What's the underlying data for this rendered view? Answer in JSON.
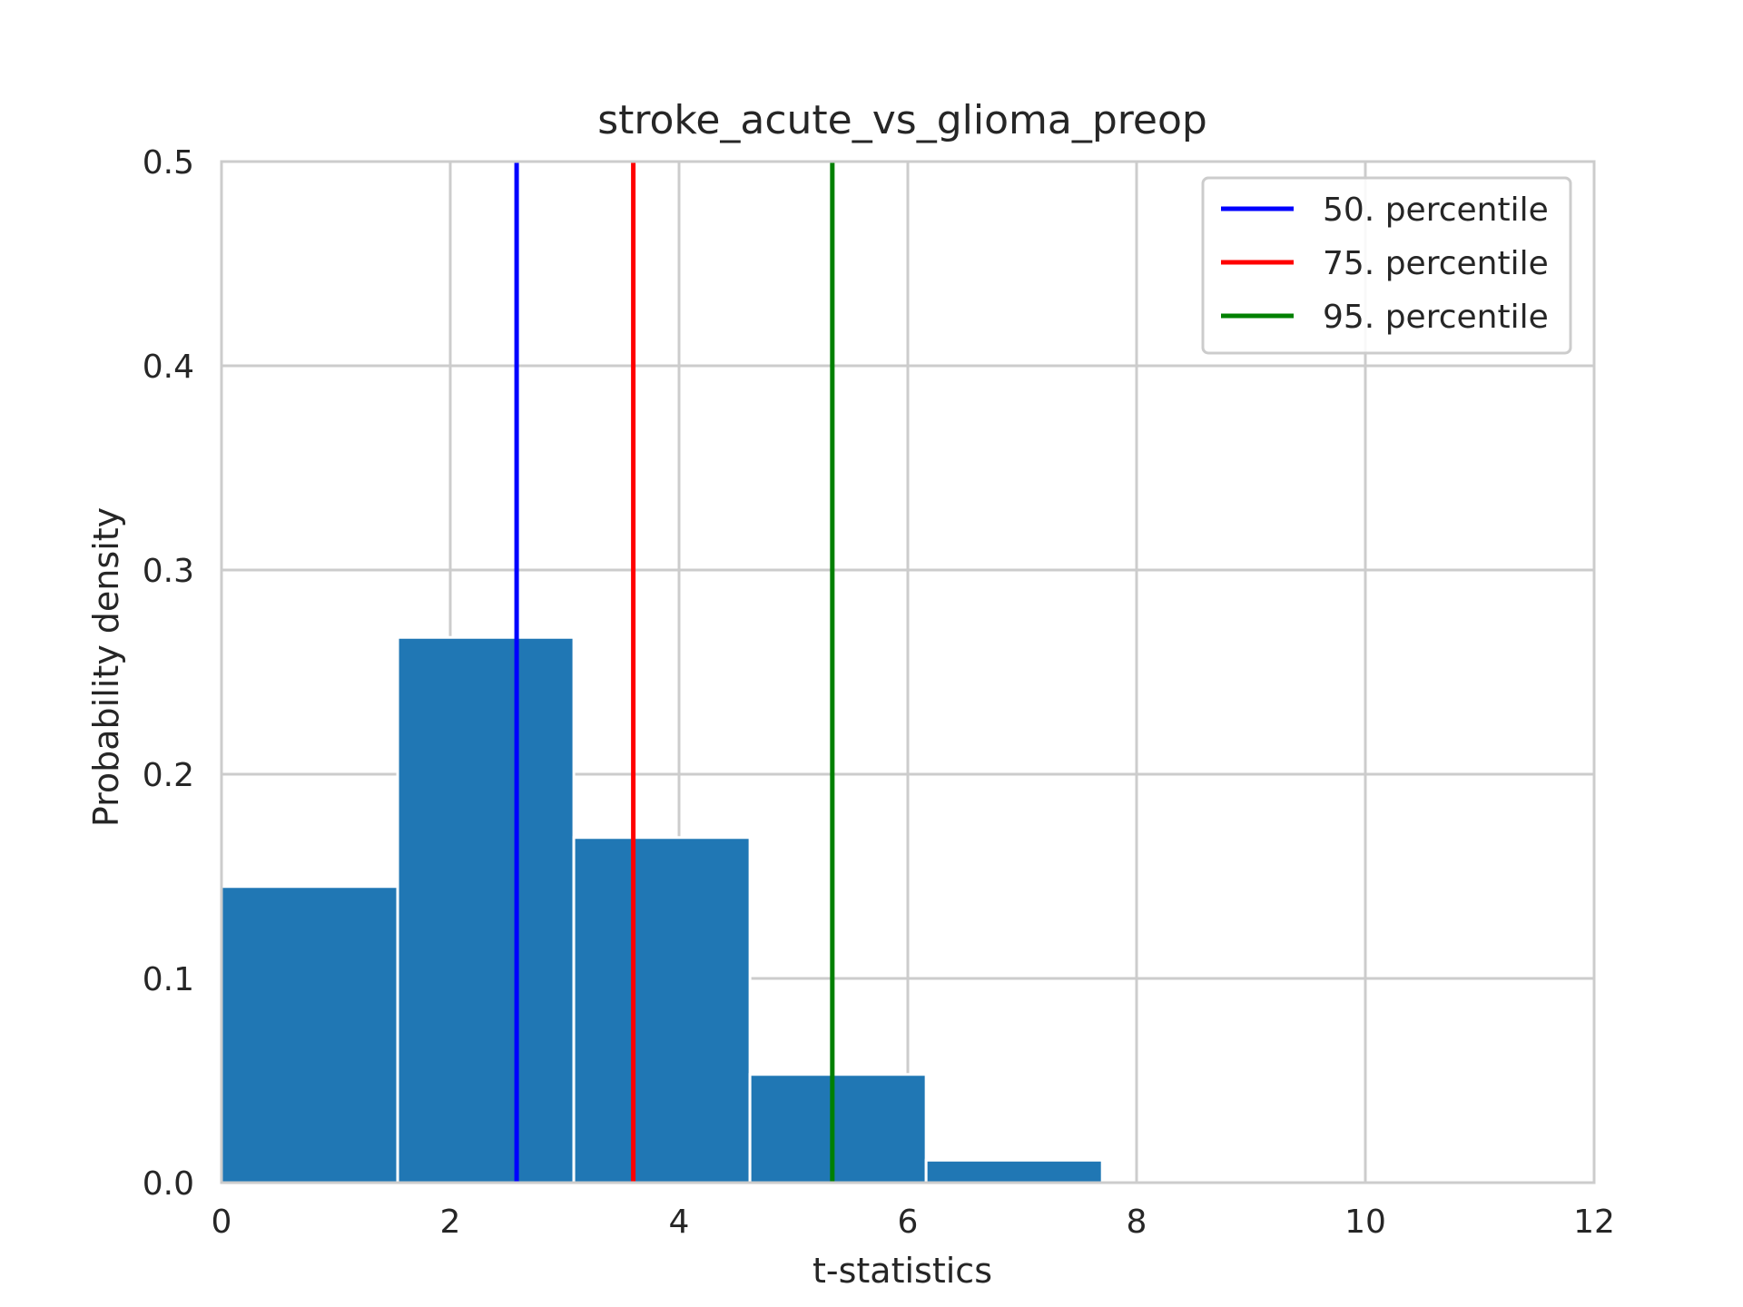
{
  "chart_data": {
    "type": "bar",
    "title": "stroke_acute_vs_glioma_preop",
    "xlabel": "t-statistics",
    "ylabel": "Probability density",
    "xlim": [
      0,
      12
    ],
    "ylim": [
      0,
      0.5
    ],
    "xticks": [
      0,
      2,
      4,
      6,
      8,
      10,
      12
    ],
    "yticks": [
      0.0,
      0.1,
      0.2,
      0.3,
      0.4,
      0.5
    ],
    "xtick_labels": [
      "0",
      "2",
      "4",
      "6",
      "8",
      "10",
      "12"
    ],
    "ytick_labels": [
      "0.0",
      "0.1",
      "0.2",
      "0.3",
      "0.4",
      "0.5"
    ],
    "grid": true,
    "bar_color": "#2077b4",
    "bins": [
      {
        "x0": 0.0,
        "x1": 1.54,
        "density": 0.145
      },
      {
        "x0": 1.54,
        "x1": 3.08,
        "density": 0.267
      },
      {
        "x0": 3.08,
        "x1": 4.62,
        "density": 0.169
      },
      {
        "x0": 4.62,
        "x1": 6.16,
        "density": 0.053
      },
      {
        "x0": 6.16,
        "x1": 7.7,
        "density": 0.011
      }
    ],
    "vlines": [
      {
        "name": "50. percentile",
        "x": 2.58,
        "color": "#0000ff"
      },
      {
        "name": "75. percentile",
        "x": 3.6,
        "color": "#ff0000"
      },
      {
        "name": "95. percentile",
        "x": 5.34,
        "color": "#008000"
      }
    ],
    "legend_position": "top-right"
  }
}
